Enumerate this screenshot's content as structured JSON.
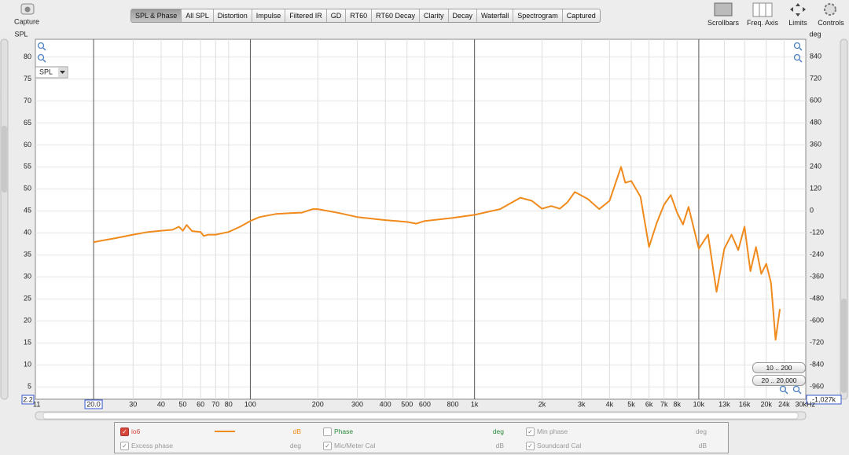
{
  "toolbar": {
    "capture": "Capture",
    "tabs": [
      "SPL & Phase",
      "All SPL",
      "Distortion",
      "Impulse",
      "Filtered IR",
      "GD",
      "RT60",
      "RT60 Decay",
      "Clarity",
      "Decay",
      "Waterfall",
      "Spectrogram",
      "Captured"
    ],
    "tools": [
      "Scrollbars",
      "Freq. Axis",
      "Limits",
      "Controls"
    ]
  },
  "view_selector": "SPL",
  "zoom_buttons": [
    "10 .. 200",
    "20 .. 20,000"
  ],
  "chart_data": {
    "type": "line",
    "ylabel": "SPL",
    "y2label": "deg",
    "xscale": "log",
    "grid": true,
    "xlim": [
      11,
      30000
    ],
    "ylim": [
      2.2,
      84
    ],
    "y2lim": [
      -1027,
      934
    ],
    "y2_min_readout": "-1,027k",
    "xticks": [
      11,
      {
        "value": 20,
        "label": "20.0"
      },
      30,
      40,
      50,
      60,
      70,
      80,
      100,
      200,
      300,
      400,
      500,
      600,
      800,
      {
        "value": 1000,
        "label": "1k"
      },
      {
        "value": 2000,
        "label": "2k"
      },
      {
        "value": 3000,
        "label": "3k"
      },
      {
        "value": 4000,
        "label": "4k"
      },
      {
        "value": 5000,
        "label": "5k"
      },
      {
        "value": 6000,
        "label": "6k"
      },
      {
        "value": 7000,
        "label": "7k"
      },
      {
        "value": 8000,
        "label": "8k"
      },
      {
        "value": 10000,
        "label": "10k"
      },
      {
        "value": 13000,
        "label": "13k"
      },
      {
        "value": 16000,
        "label": "16k"
      },
      {
        "value": 20000,
        "label": "20k"
      },
      {
        "value": 24000,
        "label": "24k"
      },
      {
        "value": 30000,
        "label": "30kHz"
      }
    ],
    "yticks": [
      5,
      10,
      15,
      20,
      25,
      30,
      35,
      40,
      45,
      50,
      55,
      60,
      65,
      70,
      75,
      80
    ],
    "y2ticks": [
      840,
      720,
      600,
      480,
      360,
      240,
      120,
      0,
      -120,
      -240,
      -360,
      -480,
      -600,
      -720,
      -840,
      -960
    ],
    "x": [
      20,
      25,
      30,
      35,
      40,
      45,
      48,
      50,
      52,
      55,
      60,
      62,
      65,
      70,
      80,
      90,
      100,
      110,
      130,
      150,
      170,
      190,
      200,
      250,
      300,
      400,
      500,
      550,
      600,
      800,
      1000,
      1300,
      1600,
      1800,
      2000,
      2200,
      2400,
      2600,
      2800,
      3200,
      3600,
      4000,
      4500,
      4700,
      5000,
      5500,
      6000,
      6500,
      7000,
      7500,
      8000,
      8500,
      9000,
      10000,
      11000,
      12000,
      13000,
      14000,
      15000,
      16000,
      17000,
      18000,
      19000,
      20000,
      21000,
      22000,
      23000
    ],
    "series": [
      {
        "name": "io6",
        "color": "#f08a1c",
        "unit": "dB",
        "values": [
          37.9,
          38.8,
          39.6,
          40.2,
          40.5,
          40.7,
          41.4,
          40.5,
          41.8,
          40.4,
          40.2,
          39.3,
          39.6,
          39.6,
          40.2,
          41.4,
          42.7,
          43.6,
          44.3,
          44.5,
          44.6,
          45.4,
          45.4,
          44.5,
          43.6,
          42.9,
          42.5,
          42.1,
          42.7,
          43.4,
          44.1,
          45.4,
          48.0,
          47.3,
          45.5,
          46.1,
          45.5,
          47.0,
          49.3,
          47.7,
          45.4,
          47.3,
          55.0,
          51.4,
          51.8,
          48.2,
          36.8,
          42.3,
          46.4,
          48.6,
          44.6,
          41.9,
          45.9,
          36.4,
          39.6,
          26.6,
          36.4,
          39.6,
          36.1,
          41.4,
          31.3,
          36.8,
          30.7,
          33.0,
          28.6,
          15.7,
          22.7
        ]
      }
    ]
  },
  "legend_table": {
    "cells": [
      {
        "unit": "dB",
        "checked": true
      },
      {
        "label": "Phase",
        "unit": "deg",
        "checked": false
      },
      {
        "label": "Min phase",
        "unit": "deg",
        "checked": true
      },
      {
        "label": "Excess phase",
        "unit": "deg",
        "checked": true
      },
      {
        "label": "Mic/Meter Cal",
        "unit": "dB",
        "checked": true
      },
      {
        "label": "Soundcard Cal",
        "unit": "dB",
        "checked": true
      }
    ]
  }
}
